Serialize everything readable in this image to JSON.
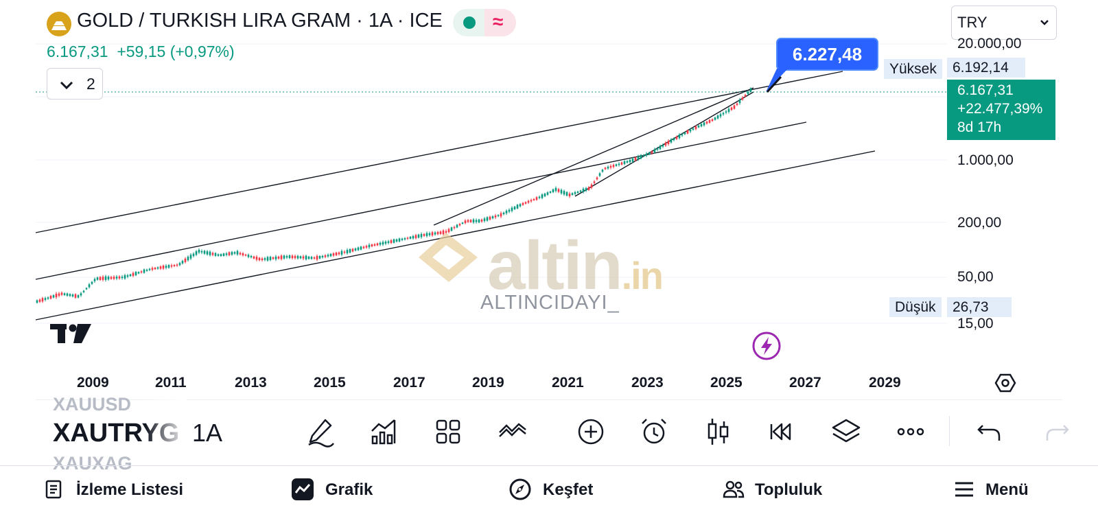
{
  "header": {
    "title": "GOLD / TURKISH LIRA GRAM · 1A · ICE",
    "price": "6.167,31",
    "change": "+59,15 (+0,97%)",
    "indicator_count": "2",
    "currency": "TRY"
  },
  "chart": {
    "callout_value": "6.227,48",
    "high_label": "Yüksek",
    "high_value": "6.192,14",
    "low_label": "Düşük",
    "low_value": "26,73",
    "last_price": "6.167,31",
    "last_change_pct": "+22.477,39%",
    "last_countdown": "8d 17h",
    "price_axis": [
      "20.000,00",
      "1.000,00",
      "200,00",
      "50,00",
      "15,00"
    ],
    "years": [
      "2009",
      "2011",
      "2013",
      "2015",
      "2017",
      "2019",
      "2021",
      "2023",
      "2025",
      "2027",
      "2029"
    ],
    "watermark_domain": "altin",
    "watermark_tld": ".in",
    "watermark_user": "ALTINCIDAYI_",
    "colors": {
      "up": "#089981",
      "down": "#f23645",
      "accent": "#2962ff"
    }
  },
  "toolbar": {
    "symbol_prev": "XAUUSD",
    "symbol_current": "XAUTRYG",
    "symbol_next": "XAUXAG",
    "interval": "1A",
    "icons": [
      "pencil-icon",
      "indicators-icon",
      "layouts-icon",
      "compare-icon",
      "add-icon",
      "alarm-icon",
      "candles-icon",
      "replay-icon",
      "layers-icon",
      "more-icon",
      "undo-icon",
      "redo-icon"
    ]
  },
  "bottom_nav": {
    "items": [
      {
        "label": "İzleme Listesi",
        "icon": "watchlist-icon"
      },
      {
        "label": "Grafik",
        "icon": "chart-icon"
      },
      {
        "label": "Keşfet",
        "icon": "compass-icon"
      },
      {
        "label": "Topluluk",
        "icon": "community-icon"
      },
      {
        "label": "Menü",
        "icon": "menu-icon"
      }
    ]
  }
}
